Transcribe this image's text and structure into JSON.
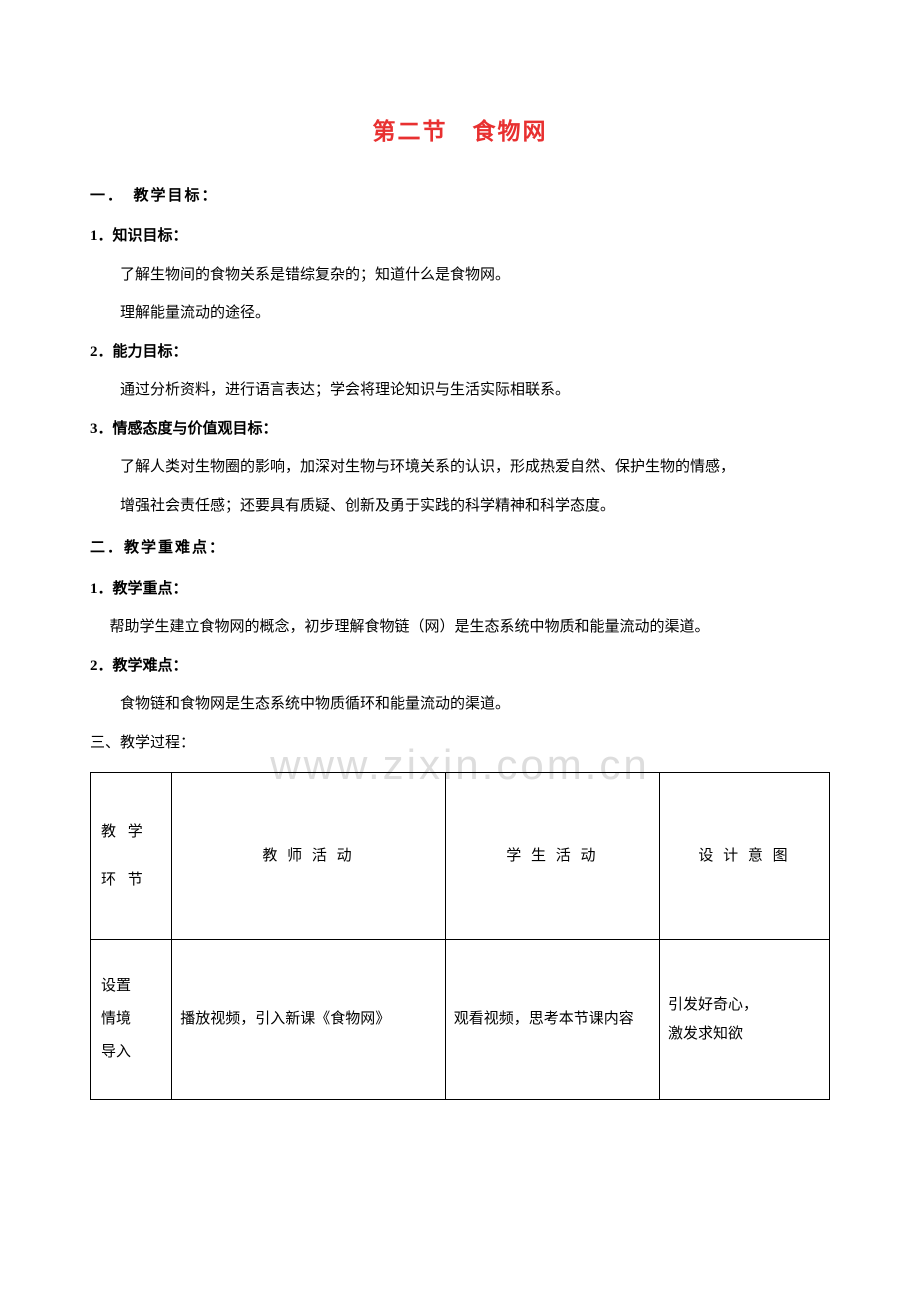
{
  "title": "第二节　食物网",
  "watermark": "www.zixin.com.cn",
  "sections": {
    "s1": {
      "heading": "一．　教学目标：",
      "items": {
        "i1": {
          "heading": "1．知识目标：",
          "lines": {
            "l1": "了解生物间的食物关系是错综复杂的；知道什么是食物网。",
            "l2": "理解能量流动的途径。"
          }
        },
        "i2": {
          "heading": "2．能力目标：",
          "lines": {
            "l1": "通过分析资料，进行语言表达；学会将理论知识与生活实际相联系。"
          }
        },
        "i3": {
          "heading": "3．情感态度与价值观目标：",
          "lines": {
            "l1": "了解人类对生物圈的影响，加深对生物与环境关系的认识，形成热爱自然、保护生物的情感，",
            "l2": "增强社会责任感；还要具有质疑、创新及勇于实践的科学精神和科学态度。"
          }
        }
      }
    },
    "s2": {
      "heading": "二．教学重难点：",
      "items": {
        "i1": {
          "heading": "1．教学重点：",
          "lines": {
            "l1": "帮助学生建立食物网的概念，初步理解食物链（网）是生态系统中物质和能量流动的渠道。"
          }
        },
        "i2": {
          "heading": "2．教学难点：",
          "lines": {
            "l1": "食物链和食物网是生态系统中物质循环和能量流动的渠道。"
          }
        }
      }
    },
    "s3": {
      "heading": "三、教学过程："
    }
  },
  "table": {
    "header": {
      "c1": "教 学\n环 节",
      "c2": "教 师 活 动",
      "c3": "学 生 活 动",
      "c4": "设 计 意 图"
    },
    "row1": {
      "c1": "设置\n情境\n导入",
      "c2": "播放视频，引入新课《食物网》",
      "c3": "观看视频，思考本节课内容",
      "c4": "引发好奇心，\n激发求知欲"
    }
  },
  "colors": {
    "title_color": "#e83030",
    "text_color": "#000000",
    "watermark_color": "#dddddd",
    "background": "#ffffff",
    "border": "#000000"
  },
  "typography": {
    "title_fontsize": 23,
    "body_fontsize": 15,
    "watermark_fontsize": 42,
    "font_family": "SimSun"
  }
}
